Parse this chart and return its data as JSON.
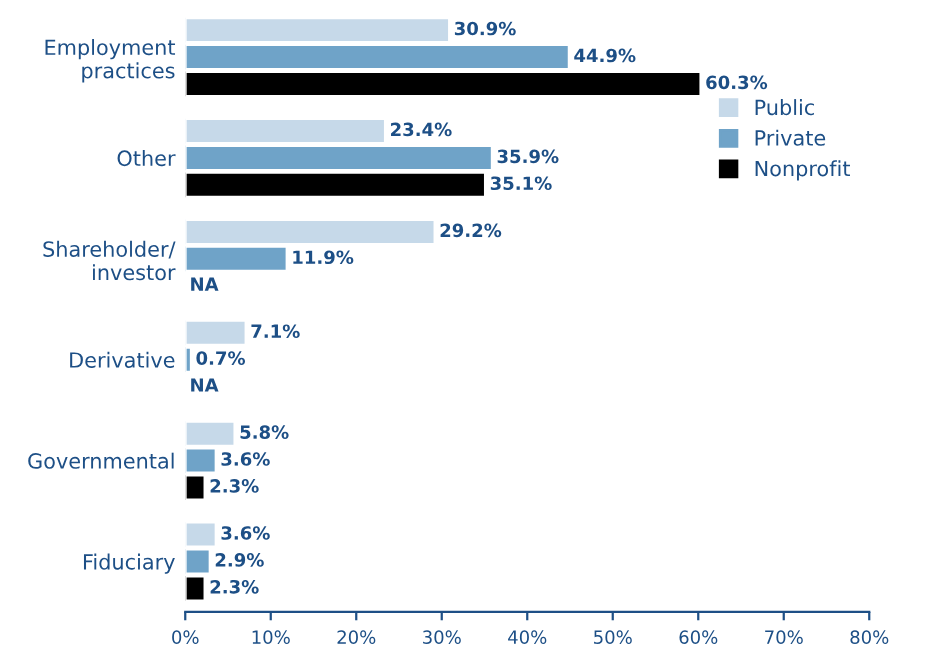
{
  "chart_data": {
    "type": "bar",
    "orientation": "horizontal",
    "categories": [
      "Employment\npractices",
      "Other",
      "Shareholder/\ninvestor",
      "Derivative",
      "Governmental",
      "Fiduciary"
    ],
    "series": [
      {
        "name": "Public",
        "color": "#c6d9e9",
        "values": [
          30.9,
          23.4,
          29.2,
          7.1,
          5.8,
          3.6
        ],
        "value_labels": [
          "30.9%",
          "23.4%",
          "29.2%",
          "7.1%",
          "5.8%",
          "3.6%"
        ]
      },
      {
        "name": "Private",
        "color": "#6fa3c8",
        "values": [
          44.9,
          35.9,
          11.9,
          0.7,
          3.6,
          2.9
        ],
        "value_labels": [
          "44.9%",
          "35.9%",
          "11.9%",
          "0.7%",
          "3.6%",
          "2.9%"
        ]
      },
      {
        "name": "Nonprofit",
        "color": "#000000",
        "values": [
          60.3,
          35.1,
          null,
          null,
          2.3,
          2.3
        ],
        "value_labels": [
          "60.3%",
          "35.1%",
          "NA",
          "NA",
          "2.3%",
          "2.3%"
        ]
      }
    ],
    "xlim": [
      0,
      80
    ],
    "xticks": [
      {
        "value": 0,
        "label": "0%"
      },
      {
        "value": 10,
        "label": "10%"
      },
      {
        "value": 20,
        "label": "20%"
      },
      {
        "value": 30,
        "label": "30%"
      },
      {
        "value": 40,
        "label": "40%"
      },
      {
        "value": 50,
        "label": "50%"
      },
      {
        "value": 60,
        "label": "60%"
      },
      {
        "value": 70,
        "label": "70%"
      },
      {
        "value": 80,
        "label": "80%"
      }
    ],
    "grid": false,
    "legend": "right"
  }
}
